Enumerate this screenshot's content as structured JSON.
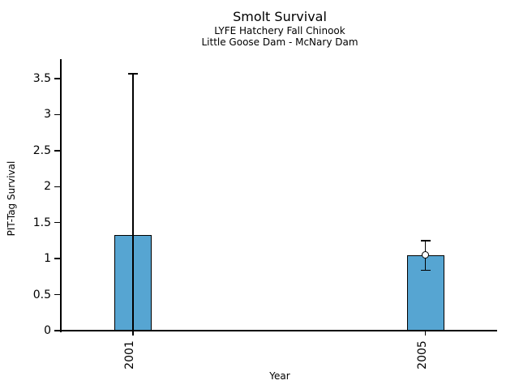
{
  "chart": {
    "title": "Smolt Survival",
    "subtitle1": "LYFE Hatchery Fall Chinook",
    "subtitle2": "Little Goose Dam - McNary Dam",
    "xlabel": "Year",
    "ylabel": "PIT-Tag Survival"
  },
  "chart_data": {
    "type": "bar",
    "title": "Smolt Survival",
    "subtitle": [
      "LYFE Hatchery Fall Chinook",
      "Little Goose Dam - McNary Dam"
    ],
    "xlabel": "Year",
    "ylabel": "PIT-Tag Survival",
    "categories": [
      "2001",
      "2005"
    ],
    "values": [
      1.33,
      1.05
    ],
    "error_bars": [
      {
        "low": 0,
        "high": 3.57,
        "low_cap": false,
        "high_cap": true,
        "marker": false
      },
      {
        "low": 0.84,
        "high": 1.25,
        "low_cap": true,
        "high_cap": true,
        "marker": true
      }
    ],
    "y_ticks": [
      "0",
      "0.5",
      "1",
      "1.5",
      "2",
      "2.5",
      "3",
      "3.5"
    ],
    "ylim": [
      0,
      3.77
    ],
    "grid": false,
    "legend": null,
    "colors": {
      "bar_fill": "#56A5D2",
      "bar_stroke": "#000000",
      "axis": "#000000",
      "background": "#FFFFFF"
    }
  }
}
